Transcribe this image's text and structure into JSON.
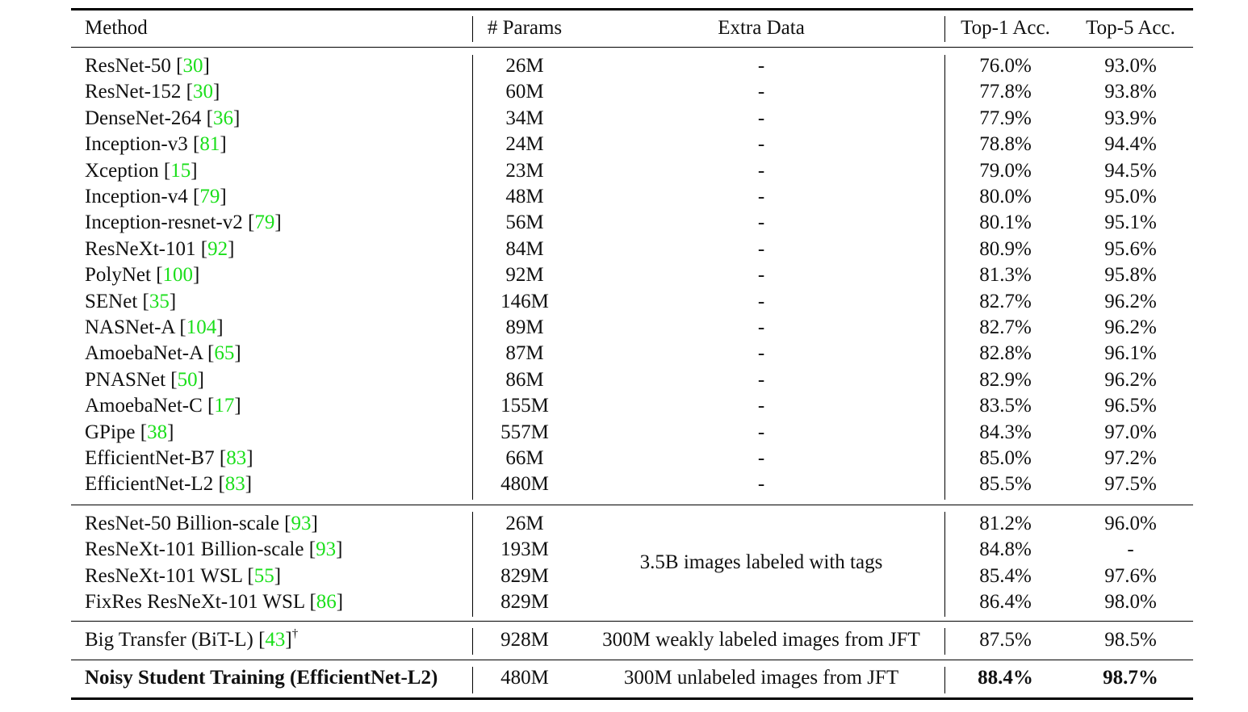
{
  "headers": {
    "method": "Method",
    "params": "# Params",
    "extra": "Extra Data",
    "top1": "Top-1 Acc.",
    "top5": "Top-5 Acc."
  },
  "group1": [
    {
      "name": "ResNet-50",
      "ref": "30",
      "params": "26M",
      "extra": "-",
      "top1": "76.0%",
      "top5": "93.0%"
    },
    {
      "name": "ResNet-152",
      "ref": "30",
      "params": "60M",
      "extra": "-",
      "top1": "77.8%",
      "top5": "93.8%"
    },
    {
      "name": "DenseNet-264",
      "ref": "36",
      "params": "34M",
      "extra": "-",
      "top1": "77.9%",
      "top5": "93.9%"
    },
    {
      "name": "Inception-v3",
      "ref": "81",
      "params": "24M",
      "extra": "-",
      "top1": "78.8%",
      "top5": "94.4%"
    },
    {
      "name": "Xception",
      "ref": "15",
      "params": "23M",
      "extra": "-",
      "top1": "79.0%",
      "top5": "94.5%"
    },
    {
      "name": "Inception-v4",
      "ref": "79",
      "params": "48M",
      "extra": "-",
      "top1": "80.0%",
      "top5": "95.0%"
    },
    {
      "name": "Inception-resnet-v2",
      "ref": "79",
      "params": "56M",
      "extra": "-",
      "top1": "80.1%",
      "top5": "95.1%"
    },
    {
      "name": "ResNeXt-101",
      "ref": "92",
      "params": "84M",
      "extra": "-",
      "top1": "80.9%",
      "top5": "95.6%"
    },
    {
      "name": "PolyNet",
      "ref": "100",
      "params": "92M",
      "extra": "-",
      "top1": "81.3%",
      "top5": "95.8%"
    },
    {
      "name": "SENet",
      "ref": "35",
      "params": "146M",
      "extra": "-",
      "top1": "82.7%",
      "top5": "96.2%"
    },
    {
      "name": "NASNet-A",
      "ref": "104",
      "params": "89M",
      "extra": "-",
      "top1": "82.7%",
      "top5": "96.2%"
    },
    {
      "name": "AmoebaNet-A",
      "ref": "65",
      "params": "87M",
      "extra": "-",
      "top1": "82.8%",
      "top5": "96.1%"
    },
    {
      "name": "PNASNet",
      "ref": "50",
      "params": "86M",
      "extra": "-",
      "top1": "82.9%",
      "top5": "96.2%"
    },
    {
      "name": "AmoebaNet-C",
      "ref": "17",
      "params": "155M",
      "extra": "-",
      "top1": "83.5%",
      "top5": "96.5%"
    },
    {
      "name": "GPipe",
      "ref": "38",
      "params": "557M",
      "extra": "-",
      "top1": "84.3%",
      "top5": "97.0%"
    },
    {
      "name": "EfficientNet-B7",
      "ref": "83",
      "params": "66M",
      "extra": "-",
      "top1": "85.0%",
      "top5": "97.2%"
    },
    {
      "name": "EfficientNet-L2",
      "ref": "83",
      "params": "480M",
      "extra": "-",
      "top1": "85.5%",
      "top5": "97.5%"
    }
  ],
  "group2": {
    "extra": "3.5B images labeled with tags",
    "rows": [
      {
        "name": "ResNet-50 Billion-scale",
        "ref": "93",
        "params": "26M",
        "top1": "81.2%",
        "top5": "96.0%"
      },
      {
        "name": "ResNeXt-101 Billion-scale",
        "ref": "93",
        "params": "193M",
        "top1": "84.8%",
        "top5": "-"
      },
      {
        "name": "ResNeXt-101 WSL",
        "ref": "55",
        "params": "829M",
        "top1": "85.4%",
        "top5": "97.6%"
      },
      {
        "name": "FixRes ResNeXt-101 WSL",
        "ref": "86",
        "params": "829M",
        "top1": "86.4%",
        "top5": "98.0%"
      }
    ]
  },
  "bit": {
    "name": "Big Transfer (BiT-L)",
    "ref": "43",
    "mark": "†",
    "params": "928M",
    "extra": "300M weakly labeled images from JFT",
    "top1": "87.5%",
    "top5": "98.5%"
  },
  "ours": {
    "name": "Noisy Student Training (EfficientNet-L2)",
    "params": "480M",
    "extra": "300M unlabeled images from JFT",
    "top1": "88.4%",
    "top5": "98.7%"
  }
}
